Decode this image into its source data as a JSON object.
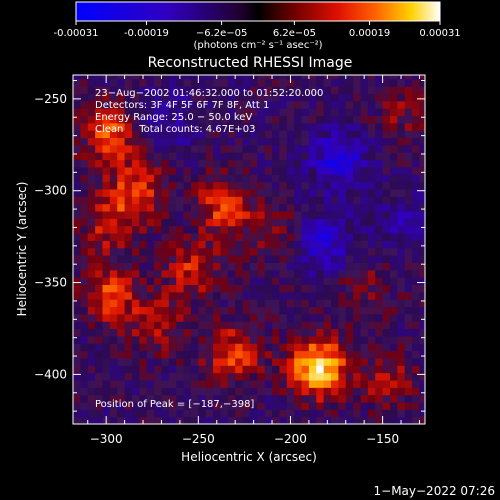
{
  "chart_data": {
    "type": "heatmap",
    "title": "Reconstructed RHESSI Image",
    "xlabel": "Heliocentric X (arcsec)",
    "ylabel": "Heliocentric Y (arcsec)",
    "xlim": [
      -318,
      -127
    ],
    "ylim": [
      -427,
      -237
    ],
    "x_ticks": [
      -300,
      -250,
      -200,
      -150
    ],
    "x_tick_labels": [
      "−300",
      "−250",
      "−200",
      "−150"
    ],
    "y_ticks": [
      -250,
      -300,
      -350,
      -400
    ],
    "y_tick_labels": [
      "−250",
      "−300",
      "−350",
      "−400"
    ],
    "colorbar": {
      "range": [
        -0.00031,
        0.00031
      ],
      "ticks": [
        -0.00031,
        -0.00019,
        -6.2e-05,
        6.2e-05,
        0.00019,
        0.00031
      ],
      "tick_labels": [
        "-0.00031",
        "-0.00019",
        "−6.2e−05",
        "6.2e−05",
        "0.00019",
        "0.00031"
      ],
      "unit_label": "(photons cm⁻² s⁻¹ asec⁻²)"
    },
    "annotations": [
      "23−Aug−2002 01:46:32.000 to 01:52:20.000",
      "Detectors: 3F 4F 5F 6F 7F 8F, Att 1",
      "Energy Range: 25.0 − 50.0 keV",
      "Clean     Total counts: 4.67E+03"
    ],
    "peak_label": "Position of Peak = [−187,−398]",
    "peak": {
      "x": -187,
      "y": -398
    },
    "grid": false,
    "bright_regions": [
      {
        "x": -300,
        "y": -270,
        "value": 0.0002
      },
      {
        "x": -285,
        "y": -300,
        "value": 0.00017
      },
      {
        "x": -238,
        "y": -310,
        "value": 0.00018
      },
      {
        "x": -300,
        "y": -320,
        "value": 0.00014
      },
      {
        "x": -300,
        "y": -358,
        "value": 0.00018
      },
      {
        "x": -255,
        "y": -345,
        "value": 0.00015
      },
      {
        "x": -275,
        "y": -375,
        "value": 0.00012
      },
      {
        "x": -210,
        "y": -325,
        "value": 0.0001
      },
      {
        "x": -233,
        "y": -390,
        "value": 0.00018
      },
      {
        "x": -187,
        "y": -398,
        "value": 0.00031
      },
      {
        "x": -150,
        "y": -405,
        "value": 0.00012
      },
      {
        "x": -140,
        "y": -260,
        "value": 8e-05
      },
      {
        "x": -160,
        "y": -355,
        "value": 7e-05
      }
    ],
    "dark_regions": [
      {
        "x": -175,
        "y": -285,
        "value": -0.00018
      },
      {
        "x": -185,
        "y": -330,
        "value": -0.00016
      },
      {
        "x": -270,
        "y": -265,
        "value": -0.0001
      },
      {
        "x": -140,
        "y": -320,
        "value": -8e-05
      }
    ]
  },
  "footer": {
    "timestamp": "1−May−2022 07:26"
  }
}
